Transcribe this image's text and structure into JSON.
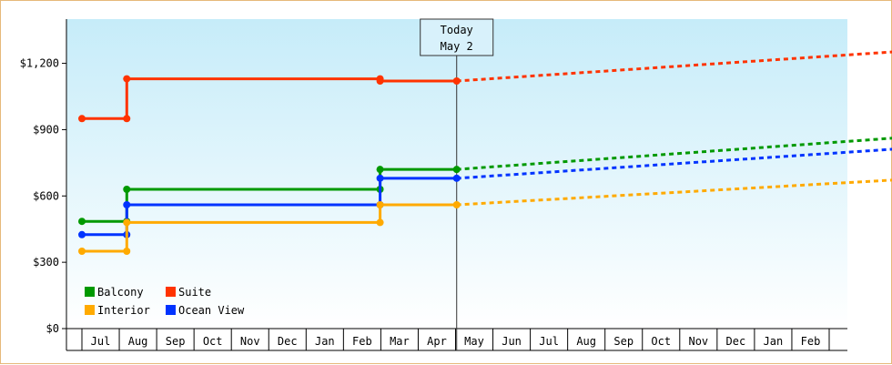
{
  "chart_data": {
    "type": "line",
    "y_tick_labels": [
      "$0",
      "$300",
      "$600",
      "$900",
      "$1,200"
    ],
    "y_tick_values": [
      0,
      300,
      600,
      900,
      1200
    ],
    "ylim": [
      0,
      1400
    ],
    "x_months": [
      "Jul",
      "Aug",
      "Sep",
      "Oct",
      "Nov",
      "Dec",
      "Jan",
      "Feb",
      "Mar",
      "Apr",
      "May",
      "Jun",
      "Jul",
      "Aug",
      "Sep",
      "Oct",
      "Nov",
      "Dec",
      "Jan",
      "Feb"
    ],
    "today_marker": {
      "line1": "Today",
      "line2": "May 2",
      "month_index": 10.03
    },
    "series": [
      {
        "name": "Suite",
        "color": "#ff3300",
        "points": [
          [
            0,
            950
          ],
          [
            1.2,
            950
          ],
          [
            1.2,
            1130
          ],
          [
            7.98,
            1130
          ],
          [
            7.98,
            1120
          ],
          [
            10.03,
            1120
          ]
        ],
        "markers": [
          [
            0,
            950
          ],
          [
            1.2,
            950
          ],
          [
            1.2,
            1130
          ],
          [
            7.98,
            1130
          ],
          [
            7.98,
            1120
          ],
          [
            10.03,
            1120
          ]
        ],
        "forecast": [
          [
            10.03,
            1120
          ],
          [
            22.0,
            1255
          ]
        ]
      },
      {
        "name": "Balcony",
        "color": "#009900",
        "points": [
          [
            0,
            485
          ],
          [
            1.2,
            485
          ],
          [
            1.2,
            630
          ],
          [
            7.98,
            630
          ],
          [
            7.98,
            720
          ],
          [
            10.03,
            720
          ]
        ],
        "markers": [
          [
            0,
            485
          ],
          [
            1.2,
            485
          ],
          [
            1.2,
            630
          ],
          [
            7.98,
            630
          ],
          [
            7.98,
            720
          ],
          [
            10.03,
            720
          ]
        ],
        "forecast": [
          [
            10.03,
            720
          ],
          [
            22.0,
            865
          ]
        ]
      },
      {
        "name": "Ocean View",
        "color": "#0033ff",
        "points": [
          [
            0,
            425
          ],
          [
            1.2,
            425
          ],
          [
            1.2,
            560
          ],
          [
            7.98,
            560
          ],
          [
            7.98,
            680
          ],
          [
            10.03,
            680
          ]
        ],
        "markers": [
          [
            0,
            425
          ],
          [
            1.2,
            425
          ],
          [
            1.2,
            560
          ],
          [
            7.98,
            560
          ],
          [
            7.98,
            680
          ],
          [
            10.03,
            680
          ]
        ],
        "forecast": [
          [
            10.03,
            680
          ],
          [
            22.0,
            815
          ]
        ]
      },
      {
        "name": "Interior",
        "color": "#ffaa00",
        "points": [
          [
            0,
            350
          ],
          [
            1.2,
            350
          ],
          [
            1.2,
            480
          ],
          [
            7.98,
            480
          ],
          [
            7.98,
            560
          ],
          [
            10.03,
            560
          ]
        ],
        "markers": [
          [
            0,
            350
          ],
          [
            1.2,
            350
          ],
          [
            1.2,
            480
          ],
          [
            7.98,
            480
          ],
          [
            7.98,
            560
          ],
          [
            10.03,
            560
          ]
        ],
        "forecast": [
          [
            10.03,
            560
          ],
          [
            22.0,
            675
          ]
        ]
      }
    ],
    "legend": [
      {
        "label": "Balcony",
        "color": "#009900"
      },
      {
        "label": "Suite",
        "color": "#ff3300"
      },
      {
        "label": "Interior",
        "color": "#ffaa00"
      },
      {
        "label": "Ocean View",
        "color": "#0033ff"
      }
    ],
    "legend_placement": "bottom-left",
    "colors": {
      "plot_top": "#c6ecf9",
      "plot_bottom": "#ffffff",
      "frame_border": "#e6b97a",
      "today_line": "#333333",
      "today_box_fill": "#d8f1fb"
    }
  }
}
